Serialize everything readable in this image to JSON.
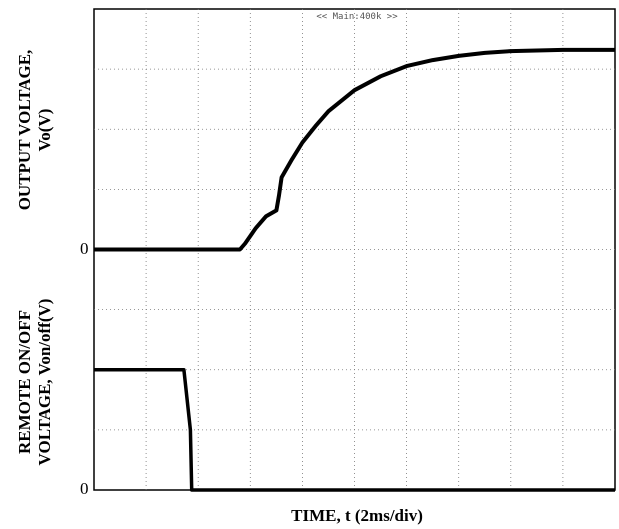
{
  "chart_data": {
    "type": "line",
    "banner": "<< Main:400k >>",
    "xlabel": "TIME, t (2ms/div)",
    "xlim": [
      0,
      20
    ],
    "divisions": {
      "x": 10,
      "y": 8
    },
    "grid": true,
    "series": [
      {
        "ylabel_lines": [
          "OUTPUT VOLTAGE,",
          "Vo(V)"
        ],
        "zero_label": "0",
        "ylim": [
          0,
          4
        ],
        "x": [
          0,
          4,
          5.6,
          5.8,
          6.2,
          6.6,
          7.0,
          7.1,
          7.2,
          7.6,
          8.0,
          8.5,
          9.0,
          10.0,
          11.0,
          12.0,
          13.0,
          14.0,
          15.0,
          16.0,
          17.0,
          18.0,
          20.0
        ],
        "values": [
          0,
          0,
          0,
          0.1,
          0.35,
          0.55,
          0.65,
          0.9,
          1.2,
          1.5,
          1.78,
          2.05,
          2.3,
          2.65,
          2.88,
          3.05,
          3.15,
          3.22,
          3.27,
          3.3,
          3.31,
          3.32,
          3.32
        ]
      },
      {
        "ylabel_lines": [
          "REMOTE ON/OFF",
          "VOLTAGE, Von/off(V)"
        ],
        "zero_label": "0",
        "ylim": [
          0,
          4
        ],
        "x": [
          0,
          3.45,
          3.5,
          3.7,
          3.75,
          20
        ],
        "values": [
          2.0,
          2.0,
          1.8,
          1.0,
          0,
          0
        ]
      }
    ]
  }
}
